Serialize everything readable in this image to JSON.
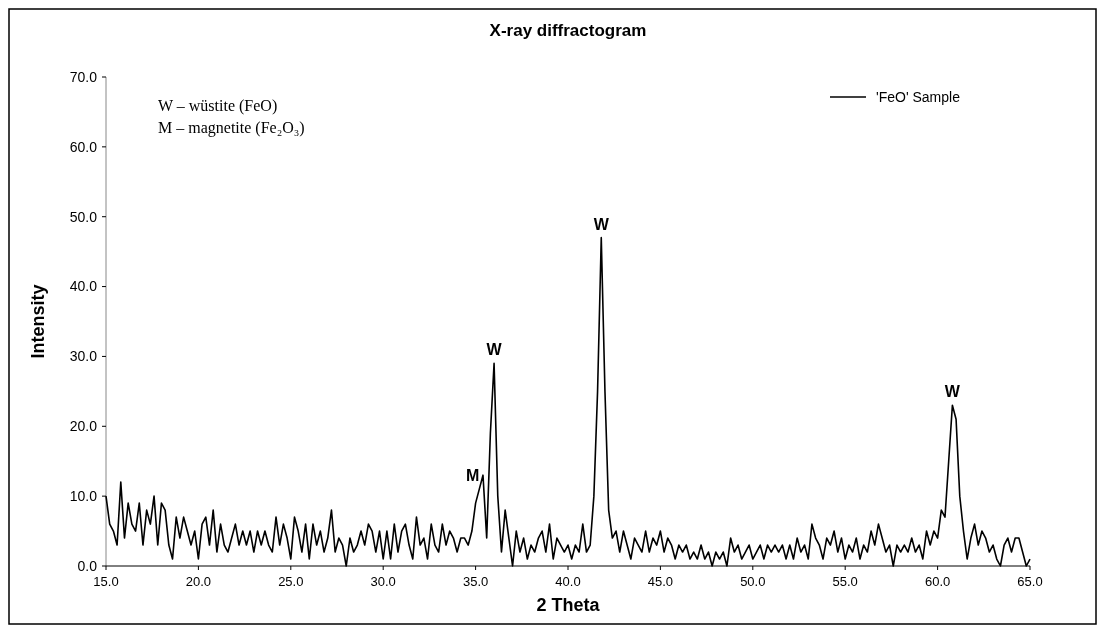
{
  "chart_data": {
    "type": "line",
    "title": "X-ray diffractogram",
    "xlabel": "2 Theta",
    "ylabel": "Intensity",
    "xlim": [
      15,
      65
    ],
    "ylim": [
      0,
      70
    ],
    "xticks": [
      {
        "value": 15,
        "label": "15.0"
      },
      {
        "value": 20,
        "label": "20.0"
      },
      {
        "value": 25,
        "label": "25.0"
      },
      {
        "value": 30,
        "label": "30.0"
      },
      {
        "value": 35,
        "label": "35.0"
      },
      {
        "value": 40,
        "label": "40.0"
      },
      {
        "value": 45,
        "label": "45.0"
      },
      {
        "value": 50,
        "label": "50.0"
      },
      {
        "value": 55,
        "label": "55.0"
      },
      {
        "value": 60,
        "label": "60.0"
      },
      {
        "value": 65,
        "label": "65.0"
      }
    ],
    "yticks": [
      {
        "value": 0,
        "label": "0.0"
      },
      {
        "value": 10,
        "label": "10.0"
      },
      {
        "value": 20,
        "label": "20.0"
      },
      {
        "value": 30,
        "label": "30.0"
      },
      {
        "value": 40,
        "label": "40.0"
      },
      {
        "value": 50,
        "label": "50.0"
      },
      {
        "value": 60,
        "label": "60.0"
      },
      {
        "value": 70,
        "label": "70.0"
      }
    ],
    "grid": false,
    "legend": "top right",
    "marker": "none",
    "line_style": "solid",
    "x": [
      15.0,
      15.2,
      15.4,
      15.6,
      15.8,
      16.0,
      16.2,
      16.4,
      16.6,
      16.8,
      17.0,
      17.2,
      17.4,
      17.6,
      17.8,
      18.0,
      18.2,
      18.4,
      18.6,
      18.8,
      19.0,
      19.2,
      19.4,
      19.6,
      19.8,
      20.0,
      20.2,
      20.4,
      20.6,
      20.8,
      21.0,
      21.2,
      21.4,
      21.6,
      21.8,
      22.0,
      22.2,
      22.4,
      22.6,
      22.8,
      23.0,
      23.2,
      23.4,
      23.6,
      23.8,
      24.0,
      24.2,
      24.4,
      24.6,
      24.8,
      25.0,
      25.2,
      25.4,
      25.6,
      25.8,
      26.0,
      26.2,
      26.4,
      26.6,
      26.8,
      27.0,
      27.2,
      27.4,
      27.6,
      27.8,
      28.0,
      28.2,
      28.4,
      28.6,
      28.8,
      29.0,
      29.2,
      29.4,
      29.6,
      29.8,
      30.0,
      30.2,
      30.4,
      30.6,
      30.8,
      31.0,
      31.2,
      31.4,
      31.6,
      31.8,
      32.0,
      32.2,
      32.4,
      32.6,
      32.8,
      33.0,
      33.2,
      33.4,
      33.6,
      33.8,
      34.0,
      34.2,
      34.4,
      34.6,
      34.8,
      35.0,
      35.2,
      35.4,
      35.6,
      35.8,
      36.0,
      36.2,
      36.4,
      36.6,
      36.8,
      37.0,
      37.2,
      37.4,
      37.6,
      37.8,
      38.0,
      38.2,
      38.4,
      38.6,
      38.8,
      39.0,
      39.2,
      39.4,
      39.6,
      39.8,
      40.0,
      40.2,
      40.4,
      40.6,
      40.8,
      41.0,
      41.2,
      41.4,
      41.6,
      41.8,
      42.0,
      42.2,
      42.4,
      42.6,
      42.8,
      43.0,
      43.2,
      43.4,
      43.6,
      43.8,
      44.0,
      44.2,
      44.4,
      44.6,
      44.8,
      45.0,
      45.2,
      45.4,
      45.6,
      45.8,
      46.0,
      46.2,
      46.4,
      46.6,
      46.8,
      47.0,
      47.2,
      47.4,
      47.6,
      47.8,
      48.0,
      48.2,
      48.4,
      48.6,
      48.8,
      49.0,
      49.2,
      49.4,
      49.6,
      49.8,
      50.0,
      50.2,
      50.4,
      50.6,
      50.8,
      51.0,
      51.2,
      51.4,
      51.6,
      51.8,
      52.0,
      52.2,
      52.4,
      52.6,
      52.8,
      53.0,
      53.2,
      53.4,
      53.6,
      53.8,
      54.0,
      54.2,
      54.4,
      54.6,
      54.8,
      55.0,
      55.2,
      55.4,
      55.6,
      55.8,
      56.0,
      56.2,
      56.4,
      56.6,
      56.8,
      57.0,
      57.2,
      57.4,
      57.6,
      57.8,
      58.0,
      58.2,
      58.4,
      58.6,
      58.8,
      59.0,
      59.2,
      59.4,
      59.6,
      59.8,
      60.0,
      60.2,
      60.4,
      60.6,
      60.8,
      61.0,
      61.2,
      61.4,
      61.6,
      61.8,
      62.0,
      62.2,
      62.4,
      62.6,
      62.8,
      63.0,
      63.2,
      63.4,
      63.6,
      63.8,
      64.0,
      64.2,
      64.4,
      64.6,
      64.8,
      65.0
    ],
    "series": [
      {
        "name": "'FeO' Sample",
        "color": "#000000",
        "values": [
          10,
          6,
          5,
          3,
          12,
          4,
          9,
          6,
          5,
          9,
          3,
          8,
          6,
          10,
          3,
          9,
          8,
          3,
          1,
          7,
          4,
          7,
          5,
          3,
          5,
          1,
          6,
          7,
          3,
          8,
          2,
          6,
          3,
          2,
          4,
          6,
          3,
          5,
          3,
          5,
          2,
          5,
          3,
          5,
          3,
          2,
          7,
          3,
          6,
          4,
          1,
          7,
          5,
          2,
          6,
          1,
          6,
          3,
          5,
          2,
          4,
          8,
          2,
          4,
          3,
          0,
          4,
          2,
          3,
          5,
          3,
          6,
          5,
          2,
          5,
          1,
          5,
          1,
          6,
          2,
          5,
          6,
          3,
          1,
          7,
          3,
          4,
          1,
          6,
          3,
          2,
          6,
          3,
          5,
          4,
          2,
          4,
          4,
          3,
          5,
          9,
          11,
          13,
          4,
          19,
          29,
          10,
          2,
          8,
          4,
          0,
          5,
          2,
          4,
          1,
          3,
          2,
          4,
          5,
          2,
          6,
          1,
          4,
          3,
          2,
          3,
          1,
          3,
          2,
          6,
          2,
          3,
          10,
          25,
          47,
          25,
          8,
          4,
          5,
          2,
          5,
          3,
          1,
          4,
          3,
          2,
          5,
          2,
          4,
          3,
          5,
          2,
          4,
          3,
          1,
          3,
          2,
          3,
          1,
          2,
          1,
          3,
          1,
          2,
          0,
          2,
          1,
          2,
          0,
          4,
          2,
          3,
          1,
          2,
          3,
          1,
          2,
          3,
          1,
          3,
          2,
          3,
          2,
          3,
          1,
          3,
          1,
          4,
          2,
          3,
          1,
          6,
          4,
          3,
          1,
          4,
          3,
          5,
          2,
          4,
          1,
          3,
          2,
          4,
          1,
          3,
          2,
          5,
          3,
          6,
          4,
          2,
          3,
          0,
          3,
          2,
          3,
          2,
          4,
          2,
          3,
          1,
          5,
          3,
          5,
          4,
          8,
          7,
          15,
          23,
          21,
          10,
          5,
          1,
          4,
          6,
          3,
          5,
          4,
          2,
          3,
          1,
          0,
          3,
          4,
          2,
          4,
          4,
          2,
          0,
          1
        ]
      }
    ],
    "annotations": [
      "W – wüstite (FeO)",
      "M – magnetite (Fe₂O₃)",
      {
        "text": "M",
        "x": 35.2,
        "y": 11
      },
      {
        "text": "W",
        "x": 36.0,
        "y": 29
      },
      {
        "text": "W",
        "x": 41.8,
        "y": 47
      },
      {
        "text": "W",
        "x": 60.8,
        "y": 23
      }
    ]
  }
}
